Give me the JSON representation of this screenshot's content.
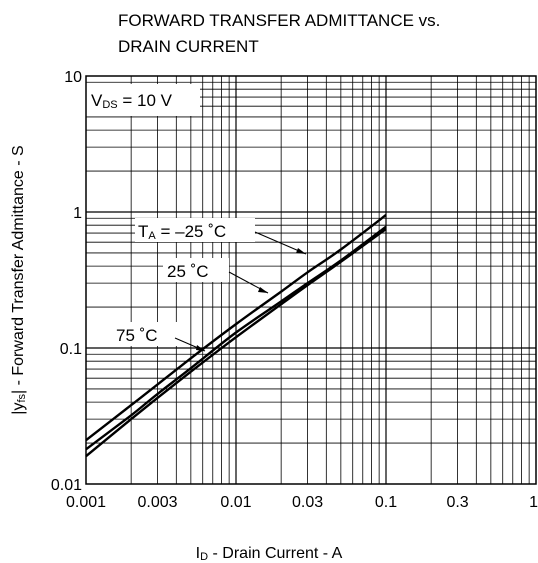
{
  "chart_data": {
    "type": "line",
    "title": "FORWARD TRANSFER ADMITTANCE vs. DRAIN CURRENT",
    "title_lines": [
      "FORWARD TRANSFER ADMITTANCE vs.",
      "DRAIN CURRENT"
    ],
    "x_scale": "log",
    "y_scale": "log",
    "xlim": [
      0.001,
      1
    ],
    "ylim": [
      0.01,
      10
    ],
    "grid": true,
    "x_ticks": [
      {
        "value": 0.001,
        "label": "0.001"
      },
      {
        "value": 0.003,
        "label": "0.003"
      },
      {
        "value": 0.01,
        "label": "0.01"
      },
      {
        "value": 0.03,
        "label": "0.03"
      },
      {
        "value": 0.1,
        "label": "0.1"
      },
      {
        "value": 0.3,
        "label": "0.3"
      },
      {
        "value": 1,
        "label": "1"
      }
    ],
    "y_ticks": [
      {
        "value": 0.01,
        "label": "0.01"
      },
      {
        "value": 0.1,
        "label": "0.1"
      },
      {
        "value": 1,
        "label": "1"
      },
      {
        "value": 10,
        "label": "10"
      }
    ],
    "xlabel": {
      "prefix": "I",
      "sub": "D",
      "suffix": " - Drain Current - A"
    },
    "ylabel": {
      "prefix": "|y",
      "sub": "fs",
      "suffix": "| - Forward Transfer Admittance - S"
    },
    "condition": {
      "prefix": "V",
      "sub": "DS",
      "suffix": " = 10 V"
    },
    "series": [
      {
        "name": "TA = –25 °C",
        "label_prefix": "T",
        "label_sub": "A",
        "label_suffix": " = –25 ˚C",
        "x": [
          0.001,
          0.002,
          0.003,
          0.005,
          0.01,
          0.02,
          0.03,
          0.05,
          0.1
        ],
        "values": [
          0.021,
          0.038,
          0.054,
          0.084,
          0.15,
          0.26,
          0.36,
          0.53,
          0.95
        ]
      },
      {
        "name": "25 °C",
        "label_prefix": "",
        "label_sub": "",
        "label_suffix": "25 ˚C",
        "x": [
          0.001,
          0.002,
          0.003,
          0.005,
          0.01,
          0.02,
          0.03,
          0.05,
          0.1
        ],
        "values": [
          0.018,
          0.032,
          0.046,
          0.071,
          0.13,
          0.22,
          0.3,
          0.44,
          0.78
        ]
      },
      {
        "name": "75 °C",
        "label_prefix": "",
        "label_sub": "",
        "label_suffix": "75 ˚C",
        "x": [
          0.001,
          0.002,
          0.003,
          0.005,
          0.01,
          0.02,
          0.03,
          0.05,
          0.1
        ],
        "values": [
          0.016,
          0.03,
          0.043,
          0.067,
          0.12,
          0.21,
          0.29,
          0.43,
          0.75
        ]
      }
    ]
  }
}
